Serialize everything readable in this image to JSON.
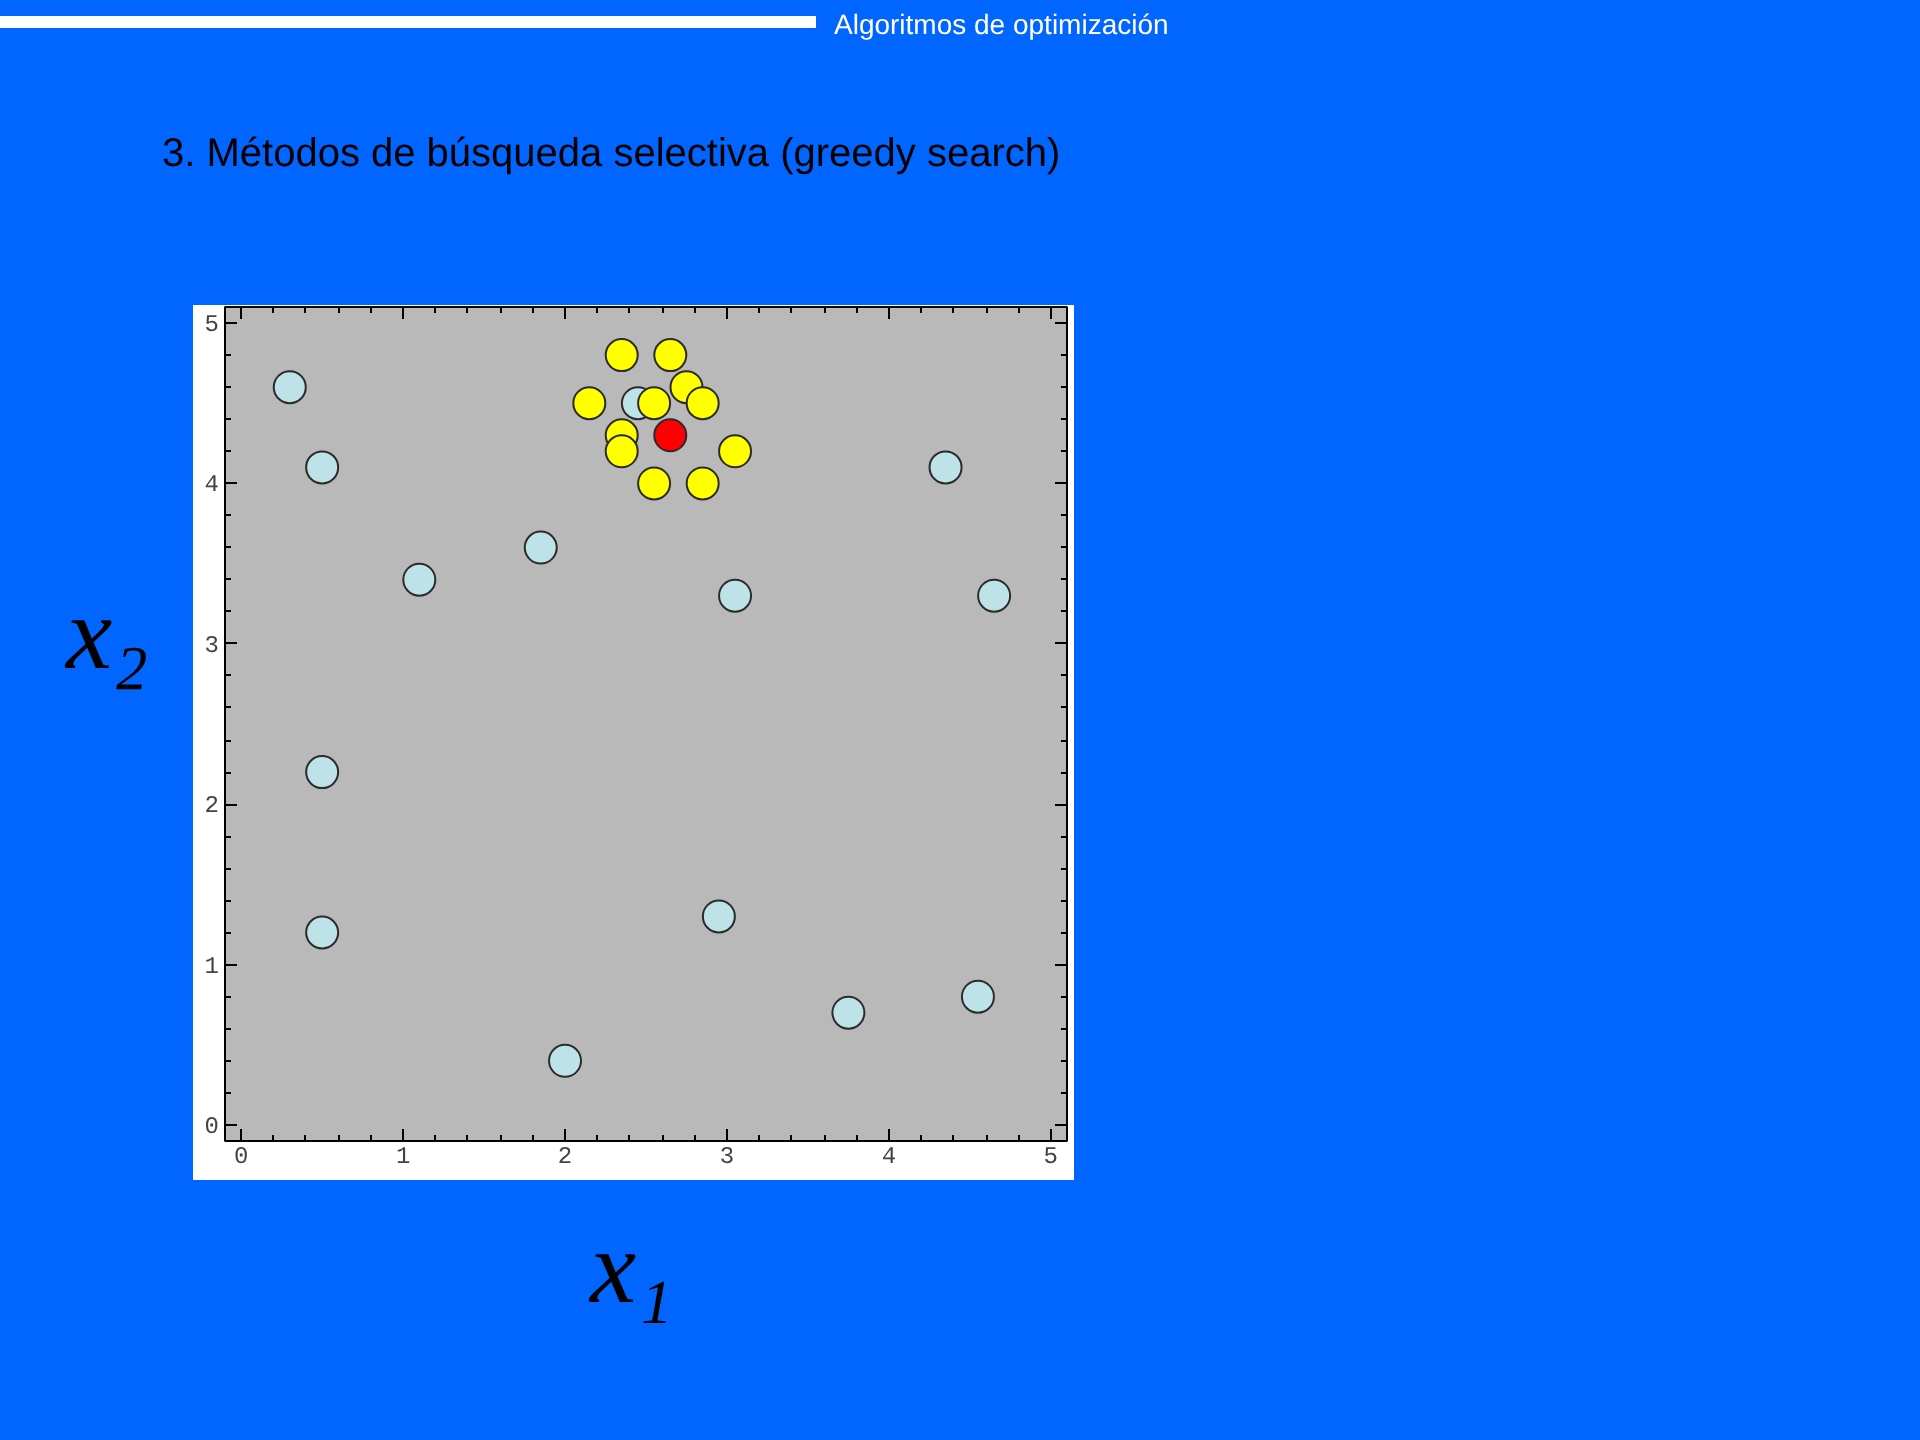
{
  "chart_data": {
    "type": "scatter",
    "title": "3. Métodos de búsqueda selectiva (greedy search)",
    "xlabel": "x₁",
    "ylabel": "x₂",
    "annotations": [
      "Algoritmos de optimización"
    ],
    "xlim": [
      -0.1,
      5.1
    ],
    "ylim": [
      -0.1,
      5.1
    ],
    "xticks": [
      0,
      1,
      2,
      3,
      4,
      5
    ],
    "yticks": [
      0,
      1,
      2,
      3,
      4,
      5
    ],
    "marker": "circle",
    "series": [
      {
        "color": "#bde3e8",
        "x": [
          0.3,
          0.5,
          1.1,
          1.85,
          2.45,
          3.05,
          4.35,
          4.65,
          0.5,
          0.5,
          2.0,
          2.95,
          3.75,
          4.55
        ],
        "values": [
          4.6,
          4.1,
          3.4,
          3.6,
          4.5,
          3.3,
          4.1,
          3.3,
          2.2,
          1.2,
          0.4,
          1.3,
          0.7,
          0.8
        ]
      },
      {
        "color": "#ffff00",
        "x": [
          2.35,
          2.65,
          2.15,
          2.55,
          2.75,
          2.85,
          2.35,
          2.35,
          3.05,
          2.55,
          2.85
        ],
        "values": [
          4.8,
          4.8,
          4.5,
          4.5,
          4.6,
          4.5,
          4.3,
          4.2,
          4.2,
          4.0,
          4.0
        ]
      },
      {
        "color": "#ff0000",
        "x": [
          2.65
        ],
        "values": [
          4.3
        ]
      }
    ]
  }
}
